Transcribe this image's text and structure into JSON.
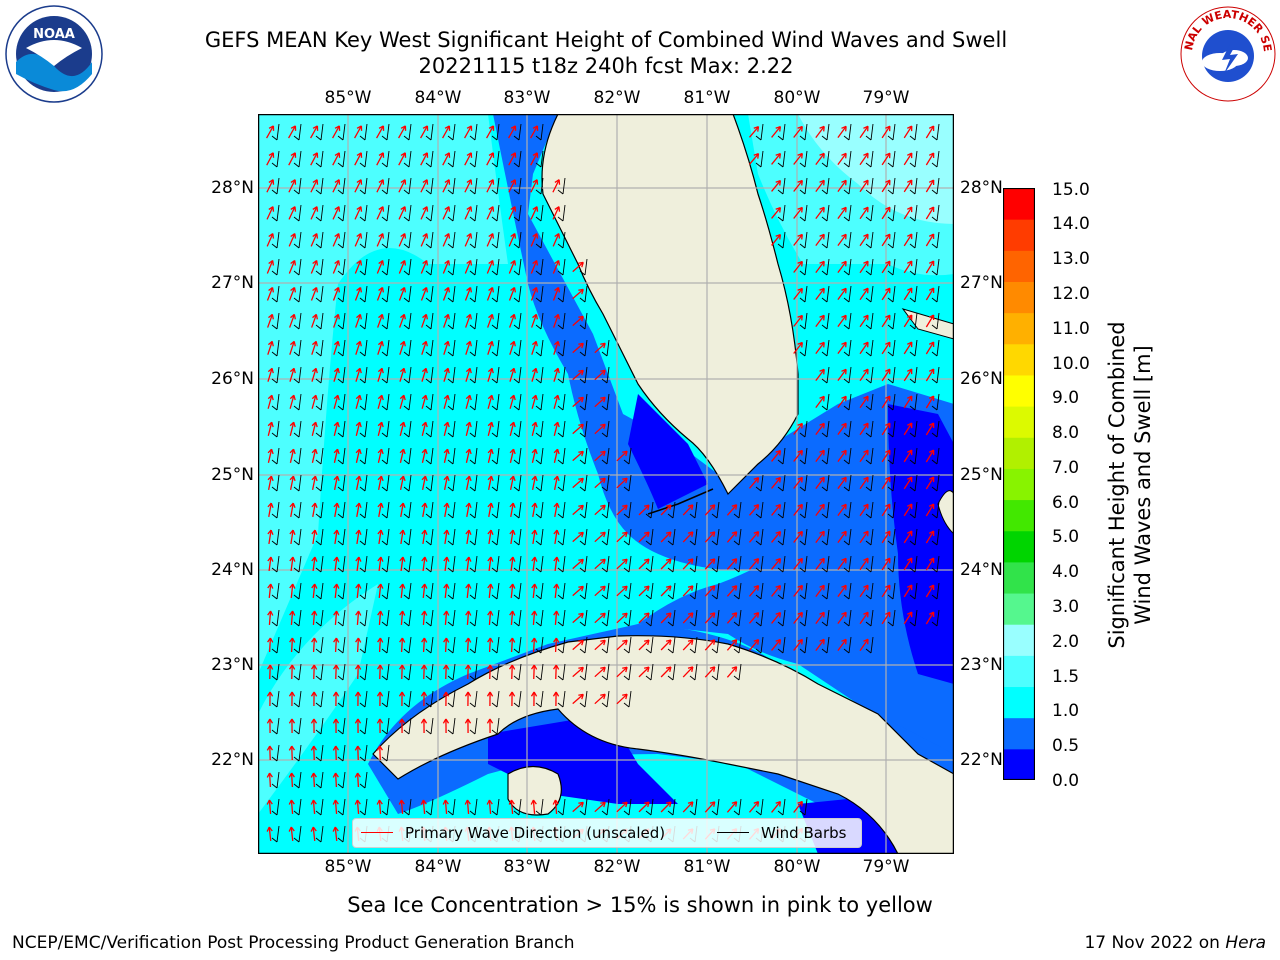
{
  "title_line1": "GEFS MEAN Key West Significant Height of Combined Wind Waves and Swell",
  "title_line2": "20221115 t18z 240h fcst   Max: 2.22",
  "logos": {
    "left": "NOAA",
    "right": "NATIONAL WEATHER SERVICE"
  },
  "map": {
    "lon_ticks": [
      "85°W",
      "84°W",
      "83°W",
      "82°W",
      "81°W",
      "80°W",
      "79°W"
    ],
    "lat_ticks": [
      "28°N",
      "27°N",
      "26°N",
      "25°N",
      "24°N",
      "23°N",
      "22°N"
    ],
    "land_color": "#efefdc",
    "gridline_color": "#b0b0b0"
  },
  "colorbar": {
    "label": "Significant Height of Combined Wind Waves and Swell [m]",
    "label_line1": "Significant Height of Combined",
    "label_line2": "Wind Waves and Swell [m]",
    "ticks": [
      "15.0",
      "14.0",
      "13.0",
      "12.0",
      "11.0",
      "10.0",
      "9.0",
      "8.0",
      "7.0",
      "6.0",
      "5.0",
      "4.0",
      "3.0",
      "2.0",
      "1.5",
      "1.0",
      "0.5",
      "0.0"
    ],
    "colors_bottom_to_top": [
      "#0000ff",
      "#0b6bff",
      "#00ffff",
      "#4dffff",
      "#99ffff",
      "#55f78e",
      "#31e34a",
      "#00d500",
      "#42e800",
      "#88f300",
      "#b1f000",
      "#dcfa00",
      "#ffff00",
      "#ffd800",
      "#ffb000",
      "#ff8a00",
      "#ff6400",
      "#ff3c00",
      "#ff0000"
    ]
  },
  "legend": {
    "wave_direction": "Primary Wave Direction (unscaled)",
    "wind_barbs": "Wind Barbs",
    "wave_color": "#ff0000",
    "barb_color": "#000000"
  },
  "subtitle": "Sea Ice Concentration > 15% is shown in pink to yellow",
  "footer_left": "NCEP/EMC/Verification Post Processing Product Generation Branch",
  "footer_right_date": "17 Nov 2022 on ",
  "footer_right_host": "Hera"
}
